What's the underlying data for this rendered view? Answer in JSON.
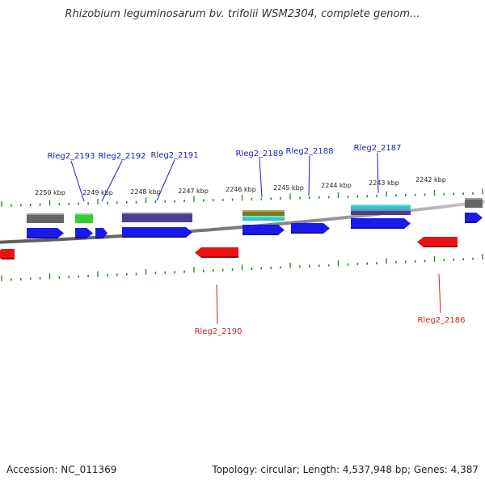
{
  "title": "Rhizobium leguminosarum bv. trifolii WSM2304, complete genom...",
  "footer": {
    "accession": "Accession: NC_011369",
    "stats": "Topology: circular; Length: 4,537,948 bp; Genes: 4,387"
  },
  "colors": {
    "forward_cds": "#1a1aee",
    "reverse_cds": "#ee1111",
    "tick": "#2e8b2e",
    "backbone": "#888888",
    "forward_label": "#1a1acc",
    "reverse_label": "#cc2222"
  },
  "kbp_labels": [
    "2250 kbp",
    "2249 kbp",
    "2248 kbp",
    "2247 kbp",
    "2246 kbp",
    "2245 kbp",
    "2244 kbp",
    "2243 kbp",
    "2242 kbp"
  ],
  "forward_genes": [
    "Rleg2_2193",
    "Rleg2_2192",
    "Rleg2_2191",
    "Rleg2_2189",
    "Rleg2_2188",
    "Rleg2_2187"
  ],
  "reverse_genes": [
    "Rleg2_2190",
    "Rleg2_2186"
  ],
  "features": [
    {
      "kind": "feature",
      "color": "#666666"
    },
    {
      "kind": "feature",
      "color": "#33cc33"
    },
    {
      "kind": "feature",
      "color": "#4b3f8f"
    },
    {
      "kind": "feature",
      "color": "#7a7a1a"
    },
    {
      "kind": "feature",
      "color": "#22cccc"
    },
    {
      "kind": "feature",
      "color": "#22cccc"
    },
    {
      "kind": "feature",
      "color": "#4b3f8f"
    },
    {
      "kind": "feature",
      "color": "#666666"
    }
  ]
}
